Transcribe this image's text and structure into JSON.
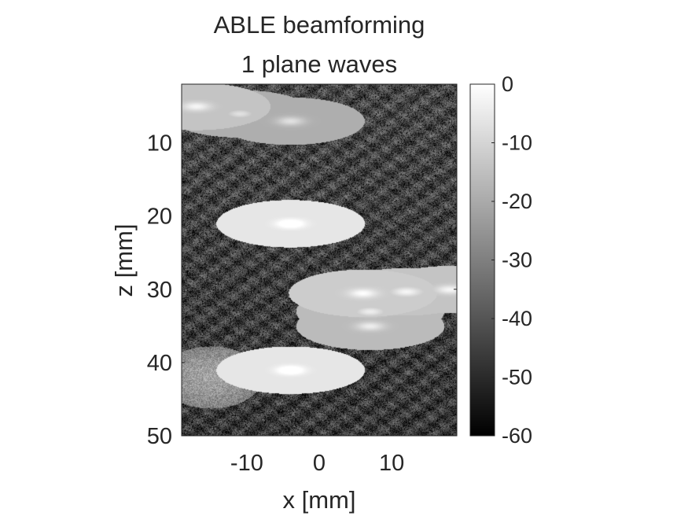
{
  "chart_data": {
    "type": "heatmap",
    "title": [
      "ABLE beamforming",
      "1 plane waves"
    ],
    "xlabel": "x [mm]",
    "ylabel": "z [mm]",
    "xlim": [
      -19,
      19
    ],
    "ylim": [
      2,
      50
    ],
    "y_reversed": true,
    "x_ticks": [
      -10,
      0,
      10
    ],
    "y_ticks": [
      10,
      20,
      30,
      40,
      50
    ],
    "colormap": "gray",
    "colorbar": {
      "limits": [
        -60,
        0
      ],
      "ticks": [
        0,
        -10,
        -20,
        -30,
        -40,
        -50,
        -60
      ],
      "location": "right"
    },
    "grid": false,
    "bright_spots": [
      {
        "x": -17,
        "z": 5,
        "db": -10
      },
      {
        "x": -11,
        "z": 6,
        "db": -15
      },
      {
        "x": -4,
        "z": 7,
        "db": -15
      },
      {
        "x": -4,
        "z": 21,
        "db": -2
      },
      {
        "x": -4,
        "z": 41,
        "db": -2
      },
      {
        "x": 6,
        "z": 30.5,
        "db": -8
      },
      {
        "x": 12,
        "z": 30.3,
        "db": -10
      },
      {
        "x": 18,
        "z": 30,
        "db": -10
      },
      {
        "x": 7,
        "z": 33,
        "db": -12
      },
      {
        "x": 7,
        "z": 35,
        "db": -12
      }
    ],
    "bright_regions": [
      {
        "x": -15,
        "z": 42,
        "db": -22
      }
    ]
  }
}
